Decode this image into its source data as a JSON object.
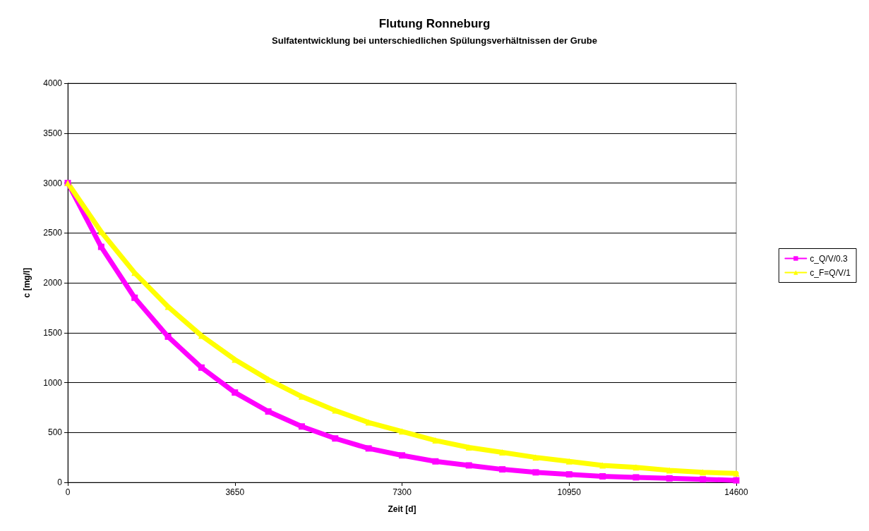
{
  "chart_data": {
    "type": "line",
    "title": "Flutung Ronneburg",
    "subtitle": "Sulfatentwicklung bei unterschiedlichen Spülungsverhältnissen der Grube",
    "xlabel": "Zeit [d]",
    "ylabel": "c [mg/l]",
    "x": [
      0,
      730,
      1460,
      2190,
      2920,
      3650,
      4380,
      5110,
      5840,
      6570,
      7300,
      8030,
      8760,
      9490,
      10220,
      10950,
      11680,
      12410,
      13140,
      13870,
      14600
    ],
    "series": [
      {
        "name": "c_Q/V/0.3",
        "color": "#ff00ff",
        "marker": "square",
        "values": [
          3000,
          2360,
          1850,
          1460,
          1150,
          900,
          710,
          560,
          440,
          340,
          270,
          210,
          170,
          130,
          100,
          80,
          60,
          50,
          40,
          30,
          20
        ]
      },
      {
        "name": "c_F=Q/V/1",
        "color": "#ffff00",
        "marker": "triangle",
        "values": [
          3000,
          2510,
          2100,
          1760,
          1470,
          1230,
          1030,
          860,
          720,
          600,
          510,
          420,
          350,
          300,
          250,
          210,
          170,
          150,
          120,
          100,
          90
        ]
      }
    ],
    "xlim": [
      0,
      14600
    ],
    "xticks": [
      0,
      3650,
      7300,
      10950,
      14600
    ],
    "ylim": [
      0,
      4000
    ],
    "yticks": [
      0,
      500,
      1000,
      1500,
      2000,
      2500,
      3000,
      3500,
      4000
    ],
    "grid": "y",
    "legend": "right",
    "line_style": "solid"
  }
}
